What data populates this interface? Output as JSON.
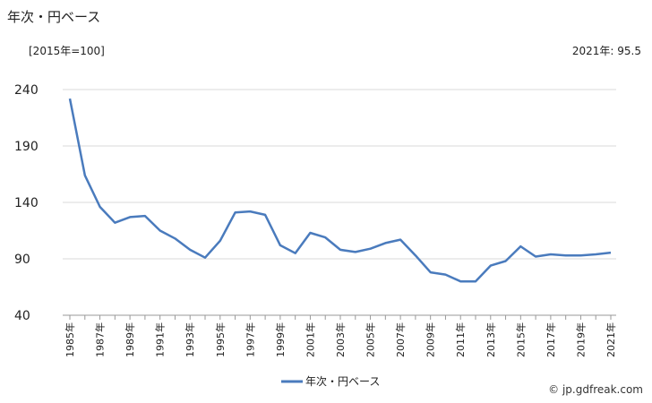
{
  "title": "年次・円ベース",
  "unit_label": "[2015年=100]",
  "latest_label": "2021年: 95.5",
  "credit": "© jp.gdfreak.com",
  "colors": {
    "line": "#4a7bbd",
    "grid": "#d9d9d9",
    "axis": "#999999"
  },
  "chart_data": {
    "type": "line",
    "title": "",
    "xlabel": "",
    "ylabel": "",
    "ylim": [
      40,
      240
    ],
    "yticks": [
      40,
      90,
      140,
      190,
      240
    ],
    "grid": true,
    "legend_position": "bottom",
    "xtick_labels": [
      "1985年",
      "1987年",
      "1989年",
      "1991年",
      "1993年",
      "1995年",
      "1997年",
      "1999年",
      "2001年",
      "2003年",
      "2005年",
      "2007年",
      "2009年",
      "2011年",
      "2013年",
      "2015年",
      "2017年",
      "2019年",
      "2021年"
    ],
    "x": [
      1985,
      1986,
      1987,
      1988,
      1989,
      1990,
      1991,
      1992,
      1993,
      1994,
      1995,
      1996,
      1997,
      1998,
      1999,
      2000,
      2001,
      2002,
      2003,
      2004,
      2005,
      2006,
      2007,
      2008,
      2009,
      2010,
      2011,
      2012,
      2013,
      2014,
      2015,
      2016,
      2017,
      2018,
      2019,
      2020,
      2021
    ],
    "series": [
      {
        "name": "年次・円ベース",
        "values": [
          232,
          164,
          136,
          122,
          127,
          128,
          115,
          108,
          98,
          91,
          106,
          131,
          132,
          129,
          102,
          95,
          113,
          109,
          98,
          96,
          99,
          104,
          107,
          93,
          78,
          76,
          70,
          70,
          84,
          88,
          101,
          92,
          94,
          93,
          93,
          94,
          95.5
        ]
      }
    ]
  }
}
